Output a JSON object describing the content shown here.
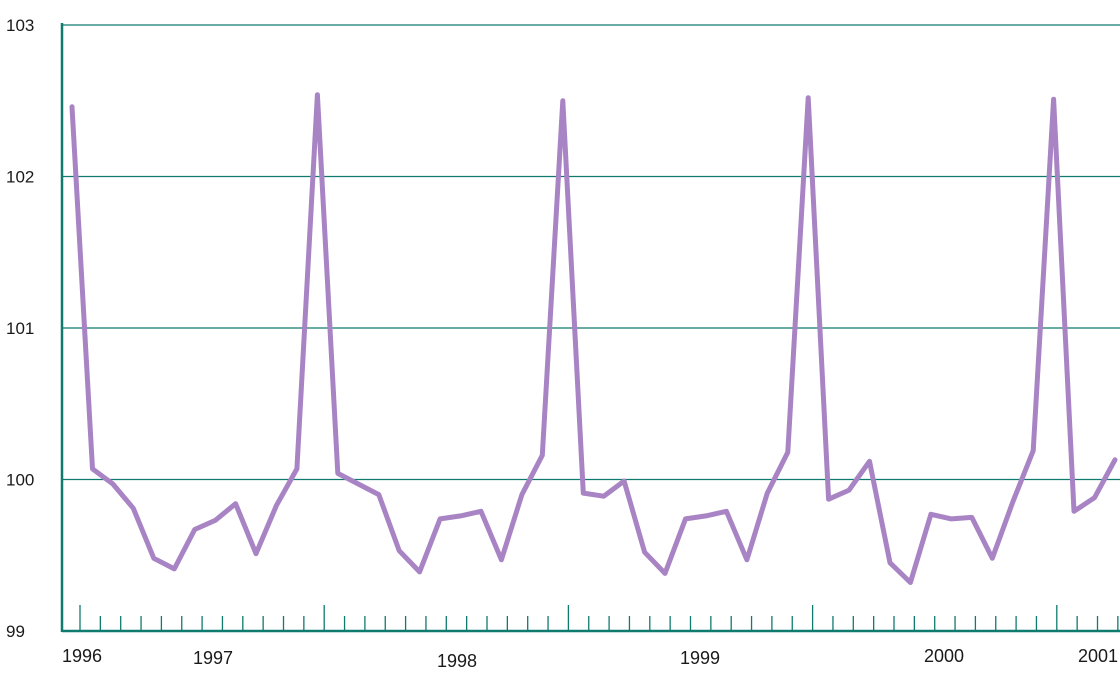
{
  "chart_data": {
    "type": "line",
    "title": "",
    "xlabel": "",
    "ylabel": "",
    "ylim": [
      99,
      103
    ],
    "y_ticks": [
      "99",
      "100",
      "101",
      "102",
      "103"
    ],
    "x_tick_labels": [
      "1996",
      "1997",
      "1998",
      "1999",
      "2000",
      "2001"
    ],
    "grid": true,
    "colors": {
      "line": "#a884c4",
      "axis": "#0f7a6e",
      "grid": "#0f7a6e"
    },
    "series": [
      {
        "values": [
          102.46,
          100.07,
          99.97,
          99.81,
          99.48,
          99.41,
          99.67,
          99.73,
          99.84,
          99.51,
          99.83,
          100.07,
          102.54,
          100.04,
          99.97,
          99.9,
          99.53,
          99.39,
          99.74,
          99.76,
          99.79,
          99.47,
          99.9,
          100.16,
          102.5,
          99.91,
          99.89,
          99.99,
          99.52,
          99.38,
          99.74,
          99.76,
          99.79,
          99.47,
          99.91,
          100.18,
          102.52,
          99.87,
          99.93,
          100.12,
          99.45,
          99.32,
          99.77,
          99.74,
          99.75,
          99.48,
          99.85,
          100.19,
          102.51,
          99.79,
          99.88,
          100.13
        ]
      }
    ]
  }
}
